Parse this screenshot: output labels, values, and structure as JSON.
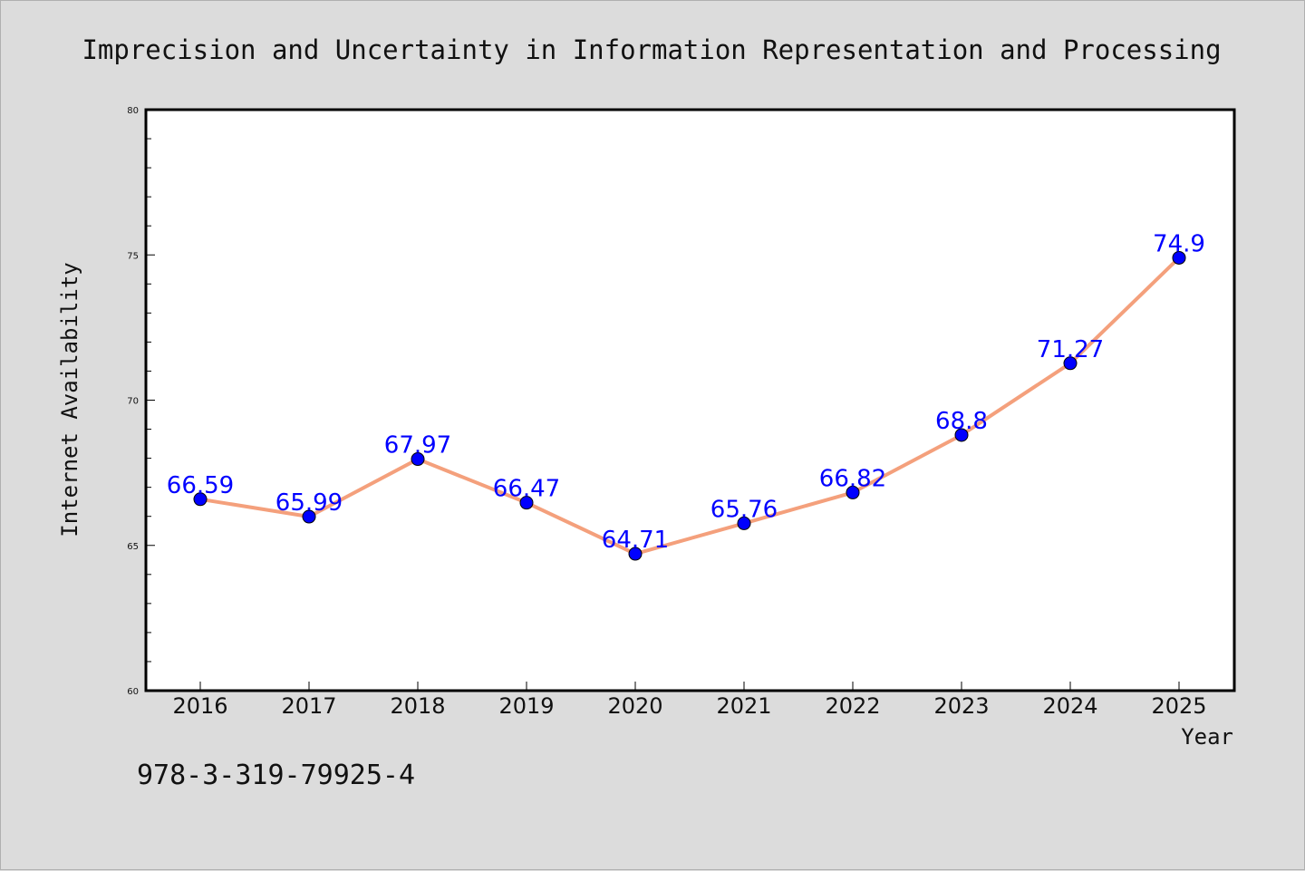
{
  "chart_data": {
    "type": "line",
    "title": "Imprecision and Uncertainty in Information Representation and Processing",
    "xlabel": "Year",
    "ylabel": "Internet Availability",
    "categories": [
      "2016",
      "2017",
      "2018",
      "2019",
      "2020",
      "2021",
      "2022",
      "2023",
      "2024",
      "2025"
    ],
    "values": [
      66.59,
      65.99,
      67.97,
      66.47,
      64.71,
      65.76,
      66.82,
      68.8,
      71.27,
      74.9
    ],
    "data_labels": [
      "66.59",
      "65.99",
      "67.97",
      "66.47",
      "64.71",
      "65.76",
      "66.82",
      "68.8",
      "71.27",
      "74.9"
    ],
    "ylim": [
      60,
      80
    ],
    "yticks": [
      "60",
      "65",
      "70",
      "75",
      "80"
    ],
    "grid": false,
    "legend": "none",
    "colors": {
      "line": "#f4a07c",
      "marker": "#0000ff",
      "data_label": "#0000ff",
      "plot_background": "#ffffff",
      "figure_background": "#dcdcdc"
    }
  },
  "footer": {
    "isbn": "978-3-319-79925-4"
  }
}
